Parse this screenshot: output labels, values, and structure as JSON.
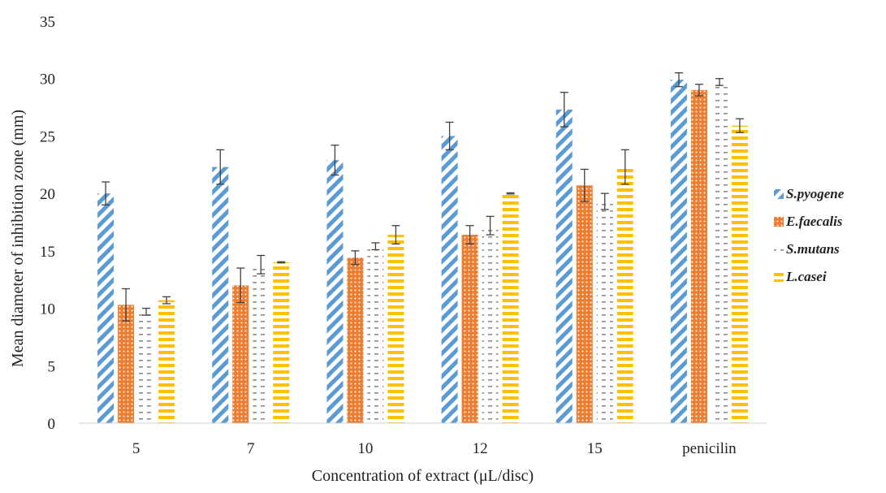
{
  "chart_data": {
    "type": "bar",
    "xlabel": "Concentration of extract (μL/disc)",
    "ylabel": "Mean diameter of inhibition zone (mm)",
    "ylim": [
      0,
      35
    ],
    "yticks": [
      0,
      5,
      10,
      15,
      20,
      25,
      30,
      35
    ],
    "grid": false,
    "legend_position": "right",
    "categories": [
      "5",
      "7",
      "10",
      "12",
      "15",
      "penicilin"
    ],
    "series": [
      {
        "name": "S.pyogene",
        "color": "#5B9BD5",
        "pattern": "diagonal-stripes",
        "values": [
          20.0,
          22.3,
          22.9,
          25.0,
          27.3,
          29.9
        ],
        "errors": [
          1.0,
          1.5,
          1.3,
          1.2,
          1.5,
          0.6
        ]
      },
      {
        "name": "E.faecalis",
        "color": "#ED7D31",
        "pattern": "dots",
        "values": [
          10.3,
          12.0,
          14.4,
          16.4,
          20.7,
          29.0
        ],
        "errors": [
          1.4,
          1.5,
          0.6,
          0.8,
          1.4,
          0.5
        ]
      },
      {
        "name": "S.mutans",
        "color": "#A5A5A5",
        "pattern": "dashes",
        "values": [
          9.7,
          13.8,
          15.4,
          17.2,
          19.3,
          29.7
        ],
        "errors": [
          0.3,
          0.8,
          0.3,
          0.8,
          0.7,
          0.3
        ]
      },
      {
        "name": "L.casei",
        "color": "#FFC000",
        "pattern": "horizontal-stripes",
        "values": [
          10.7,
          14.0,
          16.4,
          20.0,
          22.3,
          25.9
        ],
        "errors": [
          0.3,
          0.05,
          0.8,
          0.05,
          1.5,
          0.6
        ]
      }
    ]
  }
}
